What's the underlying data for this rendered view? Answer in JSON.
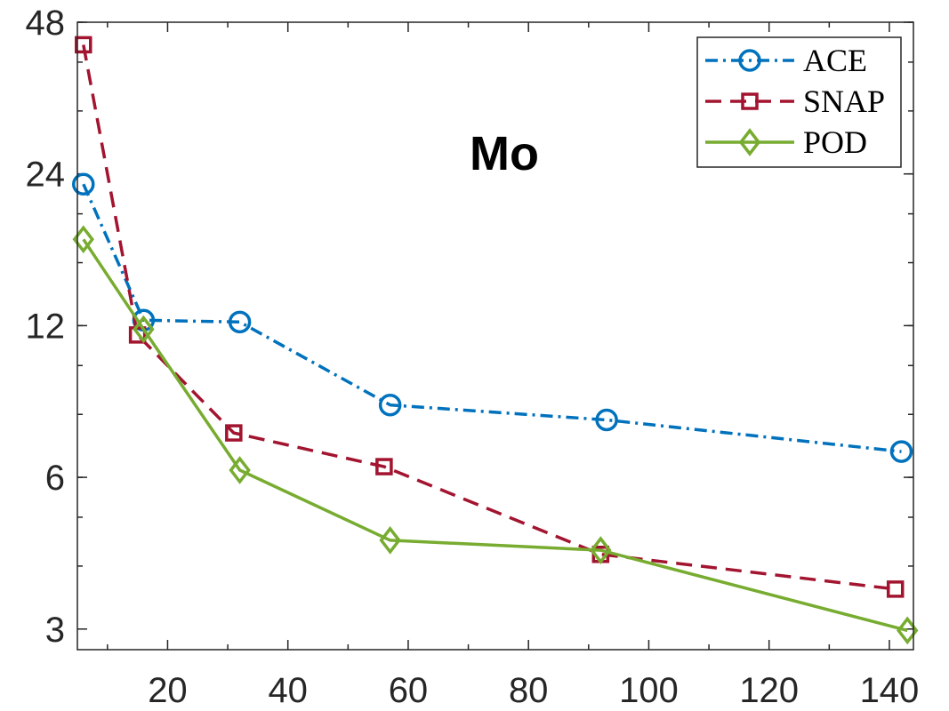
{
  "chart_data": {
    "type": "line",
    "title": "Mo",
    "xlabel": "",
    "ylabel": "",
    "xlim": [
      5,
      144
    ],
    "ylim": [
      2.73,
      48
    ],
    "yscale": "log2",
    "x_ticks": [
      20,
      40,
      60,
      80,
      100,
      120,
      140
    ],
    "x_tick_labels": [
      "20",
      "40",
      "60",
      "80",
      "100",
      "120",
      "140"
    ],
    "y_ticks": [
      3,
      6,
      12,
      24,
      48
    ],
    "y_tick_labels": [
      "3",
      "6",
      "12",
      "24",
      "48"
    ],
    "grid": false,
    "legend_position": "top-right",
    "series": [
      {
        "name": "ACE",
        "color": "#0072BD",
        "line_style": "dash-dot",
        "marker": "circle",
        "points": [
          [
            6,
            22.9
          ],
          [
            16,
            12.3
          ],
          [
            32,
            12.2
          ],
          [
            57,
            8.35
          ],
          [
            93,
            7.8
          ],
          [
            142,
            6.75
          ]
        ]
      },
      {
        "name": "SNAP",
        "color": "#A2142F",
        "line_style": "dashed",
        "marker": "square",
        "points": [
          [
            6,
            43.3
          ],
          [
            15,
            11.5
          ],
          [
            31,
            7.35
          ],
          [
            56,
            6.3
          ],
          [
            92,
            4.22
          ],
          [
            141,
            3.6
          ]
        ]
      },
      {
        "name": "POD",
        "color": "#77AC30",
        "line_style": "solid",
        "marker": "diamond",
        "points": [
          [
            6,
            17.8
          ],
          [
            16,
            11.8
          ],
          [
            32,
            6.2
          ],
          [
            57,
            4.5
          ],
          [
            92,
            4.3
          ],
          [
            143,
            2.98
          ]
        ]
      }
    ]
  }
}
